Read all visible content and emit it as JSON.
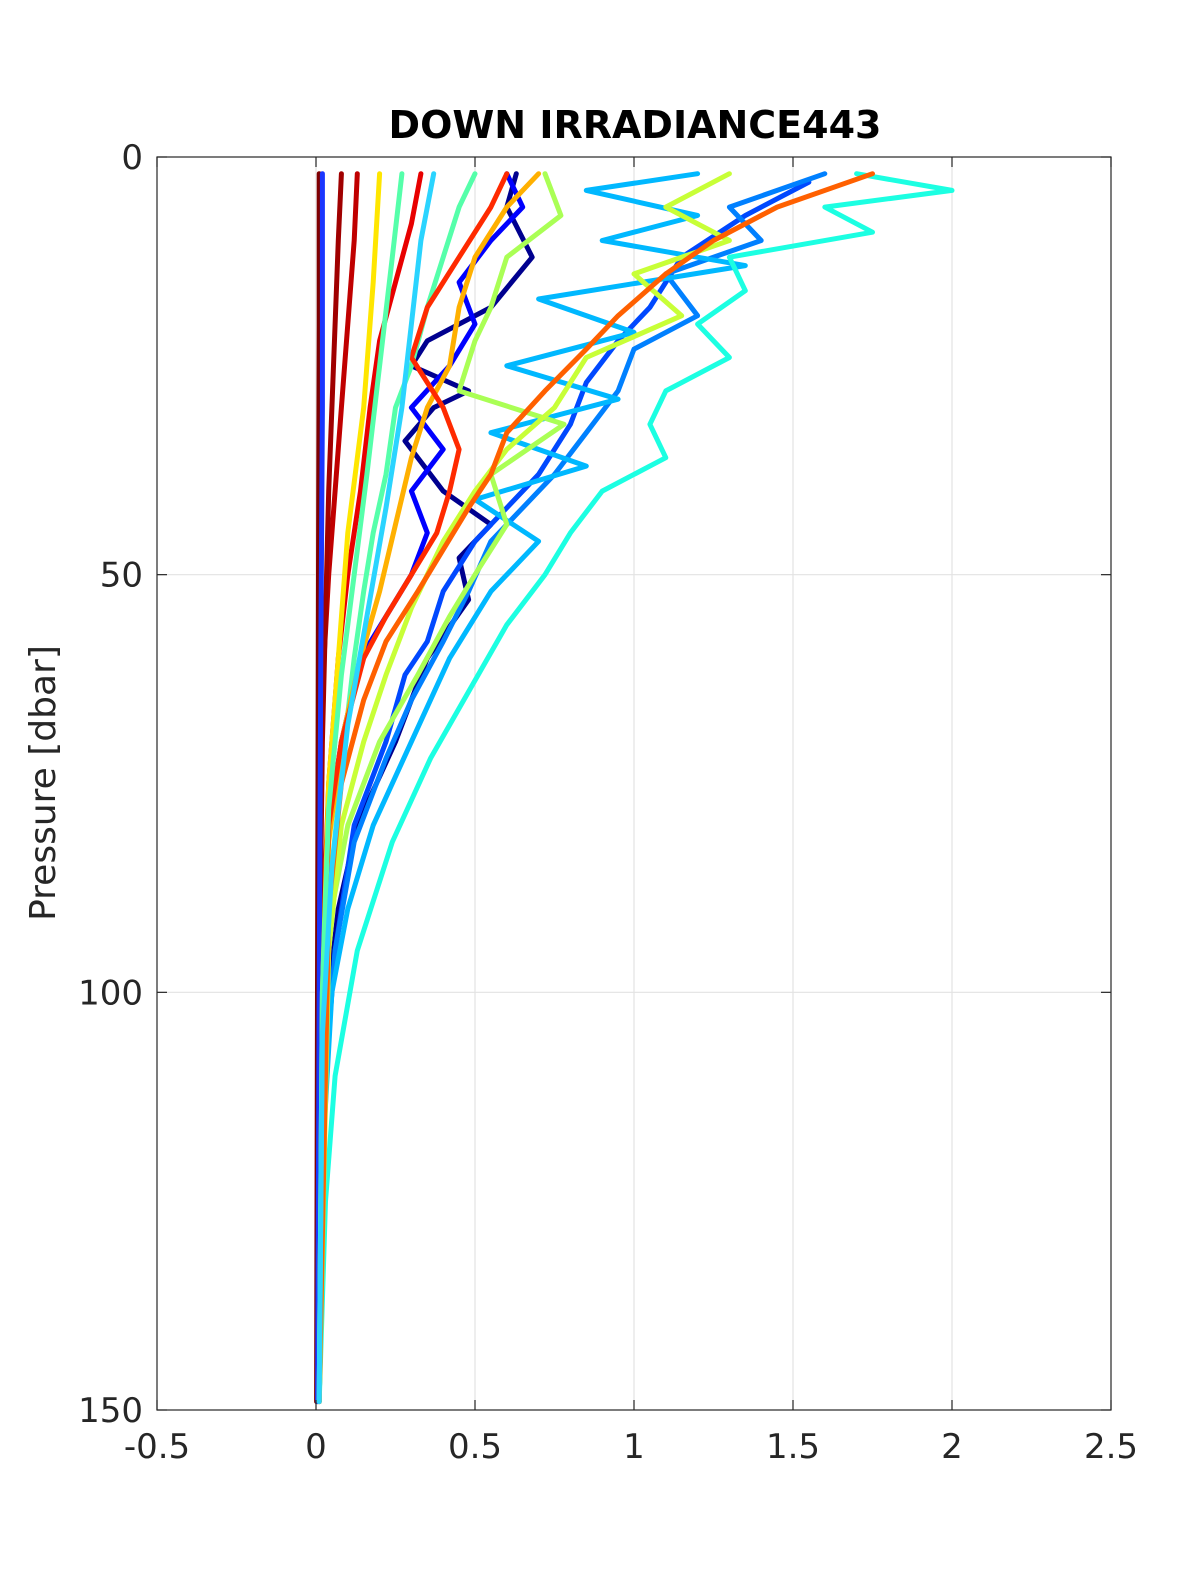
{
  "chart_data": {
    "type": "line",
    "title": "DOWN IRRADIANCE443",
    "xlabel": "",
    "ylabel": "Pressure [dbar]",
    "xlim": [
      -0.5,
      2.5
    ],
    "ylim": [
      0,
      150
    ],
    "y_reversed": true,
    "grid": true,
    "x_ticks": [
      "-0.5",
      "0",
      "0.5",
      "1",
      "1.5",
      "2",
      "2.5"
    ],
    "x_tick_values": [
      -0.5,
      0,
      0.5,
      1,
      1.5,
      2,
      2.5
    ],
    "y_ticks": [
      "0",
      "50",
      "100",
      "150"
    ],
    "y_tick_values": [
      0,
      50,
      100,
      150
    ],
    "series": [
      {
        "color": "#00008f",
        "x": [
          0.63,
          0.6,
          0.68,
          0.55,
          0.35,
          0.3,
          0.48,
          0.37,
          0.28,
          0.4,
          0.55,
          0.45,
          0.48,
          0.35,
          0.25,
          0.13,
          0.07,
          0.04,
          0.02,
          0.01
        ],
        "y": [
          2,
          6,
          12,
          18,
          22,
          25,
          28,
          30,
          34,
          40,
          44,
          48,
          53,
          60,
          70,
          80,
          90,
          100,
          120,
          149
        ]
      },
      {
        "color": "#0000ff",
        "x": [
          0.6,
          0.65,
          0.55,
          0.45,
          0.5,
          0.42,
          0.3,
          0.4,
          0.3,
          0.35,
          0.3,
          0.22,
          0.14,
          0.08,
          0.04,
          0.02,
          0.01
        ],
        "y": [
          2,
          6,
          10,
          15,
          20,
          25,
          30,
          35,
          40,
          45,
          50,
          55,
          60,
          70,
          80,
          100,
          149
        ]
      },
      {
        "color": "#0048ff",
        "x": [
          1.55,
          1.35,
          1.15,
          1.05,
          0.95,
          0.85,
          0.8,
          0.7,
          0.6,
          0.5,
          0.4,
          0.35,
          0.28,
          0.22,
          0.12,
          0.06,
          0.03,
          0.01
        ],
        "y": [
          3,
          7,
          12,
          18,
          22,
          27,
          32,
          38,
          42,
          46,
          52,
          58,
          62,
          70,
          80,
          95,
          110,
          149
        ]
      },
      {
        "color": "#0080ff",
        "x": [
          1.6,
          1.3,
          1.4,
          1.1,
          1.2,
          1.0,
          0.95,
          0.85,
          0.75,
          0.65,
          0.55,
          0.48,
          0.4,
          0.3,
          0.22,
          0.12,
          0.06,
          0.03,
          0.01
        ],
        "y": [
          2,
          6,
          10,
          14,
          19,
          23,
          28,
          33,
          38,
          42,
          46,
          52,
          58,
          65,
          72,
          82,
          95,
          110,
          149
        ]
      },
      {
        "color": "#00b8ff",
        "x": [
          1.2,
          0.85,
          1.2,
          0.9,
          1.35,
          0.7,
          1.0,
          0.6,
          0.95,
          0.55,
          0.85,
          0.5,
          0.7,
          0.55,
          0.42,
          0.3,
          0.18,
          0.1,
          0.05,
          0.02,
          0.01
        ],
        "y": [
          2,
          4,
          7,
          10,
          13,
          17,
          21,
          25,
          29,
          33,
          37,
          41,
          46,
          52,
          60,
          70,
          80,
          90,
          100,
          120,
          149
        ]
      },
      {
        "color": "#1cffe2",
        "x": [
          1.7,
          2.0,
          1.6,
          1.75,
          1.3,
          1.35,
          1.2,
          1.3,
          1.1,
          1.05,
          1.1,
          0.9,
          0.8,
          0.72,
          0.6,
          0.48,
          0.36,
          0.24,
          0.13,
          0.06,
          0.03,
          0.01
        ],
        "y": [
          2,
          4,
          6,
          9,
          12,
          16,
          20,
          24,
          28,
          32,
          36,
          40,
          45,
          50,
          56,
          64,
          72,
          82,
          95,
          110,
          125,
          149
        ]
      },
      {
        "color": "#55ffaa",
        "x": [
          0.5,
          0.45,
          0.4,
          0.35,
          0.3,
          0.25,
          0.22,
          0.18,
          0.15,
          0.12,
          0.09,
          0.05,
          0.02,
          0.01
        ],
        "y": [
          2,
          6,
          12,
          18,
          25,
          30,
          38,
          45,
          52,
          60,
          70,
          85,
          105,
          149
        ]
      },
      {
        "color": "#aaff55",
        "x": [
          0.72,
          0.77,
          0.6,
          0.55,
          0.5,
          0.45,
          0.78,
          0.55,
          0.6,
          0.5,
          0.42,
          0.32,
          0.2,
          0.1,
          0.05,
          0.02,
          0.01
        ],
        "y": [
          2,
          7,
          12,
          18,
          22,
          28,
          32,
          38,
          44,
          50,
          55,
          62,
          70,
          80,
          90,
          105,
          149
        ]
      },
      {
        "color": "#c8ff37",
        "x": [
          1.3,
          1.1,
          1.3,
          1.0,
          1.15,
          0.85,
          0.75,
          0.6,
          0.5,
          0.4,
          0.3,
          0.22,
          0.15,
          0.08,
          0.04,
          0.01
        ],
        "y": [
          2,
          6,
          10,
          14,
          19,
          24,
          30,
          35,
          40,
          46,
          54,
          62,
          70,
          80,
          95,
          149
        ]
      },
      {
        "color": "#ffb000",
        "x": [
          0.7,
          0.6,
          0.5,
          0.45,
          0.42,
          0.35,
          0.3,
          0.25,
          0.2,
          0.14,
          0.08,
          0.04,
          0.02,
          0.01
        ],
        "y": [
          2,
          6,
          12,
          18,
          25,
          30,
          36,
          44,
          52,
          60,
          70,
          82,
          100,
          149
        ]
      },
      {
        "color": "#ff6000",
        "x": [
          1.75,
          1.45,
          1.25,
          1.1,
          0.95,
          0.85,
          0.72,
          0.6,
          0.55,
          0.48,
          0.4,
          0.32,
          0.22,
          0.15,
          0.08,
          0.04,
          0.01
        ],
        "y": [
          2,
          6,
          10,
          14,
          19,
          23,
          28,
          33,
          38,
          42,
          47,
          52,
          58,
          65,
          75,
          90,
          149
        ]
      },
      {
        "color": "#ff2a00",
        "x": [
          0.6,
          0.55,
          0.45,
          0.35,
          0.3,
          0.4,
          0.45,
          0.42,
          0.38,
          0.3,
          0.22,
          0.15,
          0.08,
          0.04,
          0.02,
          0.01
        ],
        "y": [
          2,
          6,
          12,
          18,
          24,
          30,
          35,
          40,
          45,
          50,
          55,
          60,
          70,
          80,
          100,
          149
        ]
      },
      {
        "color": "#e80000",
        "x": [
          0.33,
          0.3,
          0.25,
          0.2,
          0.17,
          0.14,
          0.1,
          0.07,
          0.04,
          0.02,
          0.01
        ],
        "y": [
          2,
          8,
          15,
          22,
          30,
          40,
          50,
          60,
          75,
          95,
          149
        ]
      },
      {
        "color": "#c00000",
        "x": [
          0.13,
          0.12,
          0.1,
          0.08,
          0.06,
          0.04,
          0.025,
          0.015,
          0.01,
          0.005
        ],
        "y": [
          2,
          10,
          20,
          30,
          40,
          50,
          60,
          75,
          100,
          149
        ]
      },
      {
        "color": "#a00000",
        "x": [
          0.08,
          0.07,
          0.06,
          0.05,
          0.04,
          0.03,
          0.02,
          0.01,
          0.005
        ],
        "y": [
          2,
          10,
          20,
          30,
          40,
          55,
          70,
          100,
          149
        ]
      },
      {
        "color": "#800000",
        "x": [
          0.01,
          0.01,
          0.008,
          0.006,
          0.004,
          0.002
        ],
        "y": [
          2,
          20,
          50,
          80,
          110,
          149
        ]
      },
      {
        "color": "#1a36ff",
        "x": [
          0.02,
          0.02,
          0.015,
          0.01,
          0.005
        ],
        "y": [
          2,
          30,
          60,
          100,
          149
        ]
      },
      {
        "color": "#ffe600",
        "x": [
          0.2,
          0.18,
          0.15,
          0.1,
          0.07,
          0.04,
          0.02,
          0.01
        ],
        "y": [
          2,
          15,
          30,
          45,
          60,
          75,
          100,
          149
        ]
      },
      {
        "color": "#55ffaa",
        "x": [
          0.27,
          0.24,
          0.2,
          0.16,
          0.12,
          0.08,
          0.04,
          0.02,
          0.01
        ],
        "y": [
          2,
          12,
          25,
          38,
          50,
          62,
          78,
          100,
          149
        ]
      },
      {
        "color": "#2ad4ff",
        "x": [
          0.37,
          0.33,
          0.3,
          0.27,
          0.22,
          0.16,
          0.1,
          0.05,
          0.02,
          0.01
        ],
        "y": [
          2,
          10,
          20,
          30,
          42,
          55,
          68,
          85,
          105,
          149
        ]
      }
    ]
  }
}
